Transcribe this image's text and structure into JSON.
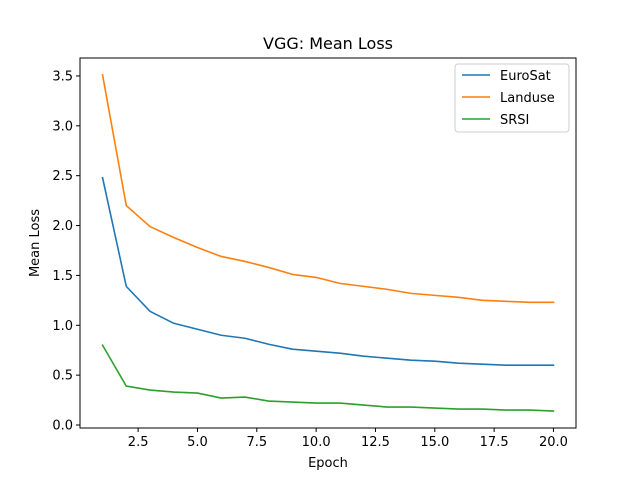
{
  "chart_data": {
    "type": "line",
    "title": "VGG: Mean Loss",
    "xlabel": "Epoch",
    "ylabel": "Mean Loss",
    "x": [
      1,
      2,
      3,
      4,
      5,
      6,
      7,
      8,
      9,
      10,
      11,
      12,
      13,
      14,
      15,
      16,
      17,
      18,
      19,
      20
    ],
    "xlim": [
      0.05,
      20.95
    ],
    "ylim": [
      -0.03,
      3.68
    ],
    "xticks": [
      2.5,
      5.0,
      7.5,
      10.0,
      12.5,
      15.0,
      17.5,
      20.0
    ],
    "xtick_labels": [
      "2.5",
      "5.0",
      "7.5",
      "10.0",
      "12.5",
      "15.0",
      "17.5",
      "20.0"
    ],
    "yticks": [
      0.0,
      0.5,
      1.0,
      1.5,
      2.0,
      2.5,
      3.0,
      3.5
    ],
    "ytick_labels": [
      "0.0",
      "0.5",
      "1.0",
      "1.5",
      "2.0",
      "2.5",
      "3.0",
      "3.5"
    ],
    "grid": false,
    "legend_position": "top-right",
    "series": [
      {
        "name": "EuroSat",
        "color": "#1f77b4",
        "values": [
          2.48,
          1.39,
          1.14,
          1.02,
          0.96,
          0.9,
          0.87,
          0.81,
          0.76,
          0.74,
          0.72,
          0.69,
          0.67,
          0.65,
          0.64,
          0.62,
          0.61,
          0.6,
          0.6,
          0.6
        ]
      },
      {
        "name": "Landuse",
        "color": "#ff7f0e",
        "values": [
          3.51,
          2.2,
          1.99,
          1.88,
          1.78,
          1.69,
          1.64,
          1.58,
          1.51,
          1.48,
          1.42,
          1.39,
          1.36,
          1.32,
          1.3,
          1.28,
          1.25,
          1.24,
          1.23,
          1.23
        ]
      },
      {
        "name": "SRSI",
        "color": "#2ca02c",
        "values": [
          0.8,
          0.39,
          0.35,
          0.33,
          0.32,
          0.27,
          0.28,
          0.24,
          0.23,
          0.22,
          0.22,
          0.2,
          0.18,
          0.18,
          0.17,
          0.16,
          0.16,
          0.15,
          0.15,
          0.14
        ]
      }
    ]
  }
}
